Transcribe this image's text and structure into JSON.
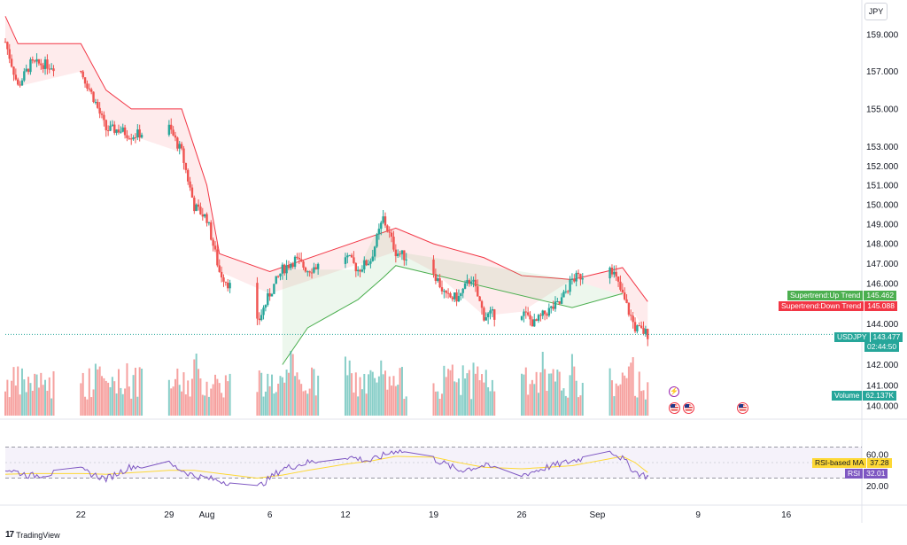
{
  "currency_button": "JPY",
  "branding": {
    "logo": "17",
    "name": "TradingView"
  },
  "price_axis": {
    "ticks": [
      "159.000",
      "157.000",
      "155.000",
      "153.000",
      "152.000",
      "151.000",
      "150.000",
      "149.000",
      "148.000",
      "147.000",
      "146.000",
      "144.000",
      "142.000",
      "141.000",
      "140.000"
    ]
  },
  "rsi_axis": {
    "ticks": [
      "60.00",
      "20.00"
    ]
  },
  "time_axis": {
    "ticks": [
      "22",
      "29",
      "Aug",
      "6",
      "12",
      "19",
      "26",
      "Sep",
      "9",
      "16"
    ]
  },
  "tags": {
    "st_up_label": "Supertrend:Up Trend",
    "st_up_value": "145.462",
    "st_down_label": "Supertrend:Down Trend",
    "st_down_value": "145.088",
    "symbol_label": "USDJPY",
    "symbol_price": "143.477",
    "countdown": "02:44:50",
    "volume_label": "Volume",
    "volume_value": "62.137K",
    "rsi_ma_label": "RSI-based MA",
    "rsi_ma_value": "37.28",
    "rsi_label": "RSI",
    "rsi_value": "32.01"
  },
  "colors": {
    "up": "#26a69a",
    "down": "#ef5350",
    "st_up": "#4caf50",
    "st_down": "#f23645",
    "rsi": "#7e57c2",
    "rsi_ma": "#fdd835",
    "price_line": "#26a69a"
  },
  "chart_data": {
    "type": "line",
    "symbol": "USDJPY",
    "currency": "JPY",
    "y_scale": "log",
    "ylim": [
      139.5,
      160.5
    ],
    "xlim": [
      "2024-07-16",
      "2024-09-22"
    ],
    "x_ticks": [
      "22",
      "29",
      "Aug",
      "6",
      "12",
      "19",
      "26",
      "Sep",
      "9",
      "16"
    ],
    "close_daily": [
      {
        "date": "2024-07-16",
        "close": 158.6
      },
      {
        "date": "2024-07-17",
        "close": 156.2
      },
      {
        "date": "2024-07-18",
        "close": 157.4
      },
      {
        "date": "2024-07-19",
        "close": 157.4
      },
      {
        "date": "2024-07-22",
        "close": 157.0
      },
      {
        "date": "2024-07-23",
        "close": 155.6
      },
      {
        "date": "2024-07-24",
        "close": 153.9
      },
      {
        "date": "2024-07-25",
        "close": 153.9
      },
      {
        "date": "2024-07-26",
        "close": 153.6
      },
      {
        "date": "2024-07-29",
        "close": 154.0
      },
      {
        "date": "2024-07-30",
        "close": 152.7
      },
      {
        "date": "2024-07-31",
        "close": 149.9
      },
      {
        "date": "2024-08-01",
        "close": 149.3
      },
      {
        "date": "2024-08-02",
        "close": 146.6
      },
      {
        "date": "2024-08-05",
        "close": 144.0
      },
      {
        "date": "2024-08-06",
        "close": 145.5
      },
      {
        "date": "2024-08-07",
        "close": 146.7
      },
      {
        "date": "2024-08-08",
        "close": 147.2
      },
      {
        "date": "2024-08-09",
        "close": 146.7
      },
      {
        "date": "2024-08-12",
        "close": 147.4
      },
      {
        "date": "2024-08-13",
        "close": 146.7
      },
      {
        "date": "2024-08-14",
        "close": 147.2
      },
      {
        "date": "2024-08-15",
        "close": 149.3
      },
      {
        "date": "2024-08-16",
        "close": 147.6
      },
      {
        "date": "2024-08-19",
        "close": 146.6
      },
      {
        "date": "2024-08-20",
        "close": 145.3
      },
      {
        "date": "2024-08-21",
        "close": 145.3
      },
      {
        "date": "2024-08-22",
        "close": 146.3
      },
      {
        "date": "2024-08-23",
        "close": 144.4
      },
      {
        "date": "2024-08-26",
        "close": 144.6
      },
      {
        "date": "2024-08-27",
        "close": 144.0
      },
      {
        "date": "2024-08-28",
        "close": 144.6
      },
      {
        "date": "2024-08-29",
        "close": 145.0
      },
      {
        "date": "2024-08-30",
        "close": 146.2
      },
      {
        "date": "2024-09-02",
        "close": 147.0
      },
      {
        "date": "2024-09-03",
        "close": 145.4
      },
      {
        "date": "2024-09-04",
        "close": 143.8
      },
      {
        "date": "2024-09-05",
        "close": 143.5
      }
    ],
    "supertrend_down": [
      {
        "date": "2024-07-16",
        "value": 160.0
      },
      {
        "date": "2024-07-17",
        "value": 158.5
      },
      {
        "date": "2024-07-22",
        "value": 158.5
      },
      {
        "date": "2024-07-24",
        "value": 156.0
      },
      {
        "date": "2024-07-26",
        "value": 155.0
      },
      {
        "date": "2024-07-30",
        "value": 155.0
      },
      {
        "date": "2024-07-31",
        "value": 153.0
      },
      {
        "date": "2024-08-01",
        "value": 151.0
      },
      {
        "date": "2024-08-02",
        "value": 147.5
      },
      {
        "date": "2024-08-06",
        "value": 146.6
      },
      {
        "date": "2024-08-16",
        "value": 148.8
      },
      {
        "date": "2024-08-19",
        "value": 148.0
      },
      {
        "date": "2024-08-23",
        "value": 147.3
      },
      {
        "date": "2024-08-26",
        "value": 146.4
      },
      {
        "date": "2024-08-30",
        "value": 146.2
      },
      {
        "date": "2024-09-03",
        "value": 146.8
      },
      {
        "date": "2024-09-05",
        "value": 145.1
      }
    ],
    "supertrend_up": [
      {
        "date": "2024-08-07",
        "value": 142.0
      },
      {
        "date": "2024-08-09",
        "value": 143.8
      },
      {
        "date": "2024-08-13",
        "value": 145.2
      },
      {
        "date": "2024-08-15",
        "value": 146.3
      },
      {
        "date": "2024-08-16",
        "value": 146.9
      },
      {
        "date": "2024-08-30",
        "value": 144.8
      },
      {
        "date": "2024-09-03",
        "value": 145.5
      }
    ],
    "volume": {
      "last": "62.137K"
    },
    "rsi": {
      "length_label": "RSI",
      "ylim": [
        0,
        100
      ],
      "bands": [
        30,
        70
      ],
      "last": 32.01,
      "ma_last": 37.28,
      "daily": [
        {
          "date": "2024-07-16",
          "rsi": 42,
          "ma": 35
        },
        {
          "date": "2024-07-18",
          "rsi": 33,
          "ma": 36
        },
        {
          "date": "2024-07-22",
          "rsi": 40,
          "ma": 36
        },
        {
          "date": "2024-07-24",
          "rsi": 29,
          "ma": 35
        },
        {
          "date": "2024-07-26",
          "rsi": 45,
          "ma": 37
        },
        {
          "date": "2024-07-29",
          "rsi": 48,
          "ma": 40
        },
        {
          "date": "2024-07-31",
          "rsi": 33,
          "ma": 40
        },
        {
          "date": "2024-08-02",
          "rsi": 27,
          "ma": 36
        },
        {
          "date": "2024-08-05",
          "rsi": 18,
          "ma": 30
        },
        {
          "date": "2024-08-07",
          "rsi": 42,
          "ma": 34
        },
        {
          "date": "2024-08-09",
          "rsi": 50,
          "ma": 40
        },
        {
          "date": "2024-08-12",
          "rsi": 58,
          "ma": 48
        },
        {
          "date": "2024-08-14",
          "rsi": 52,
          "ma": 52
        },
        {
          "date": "2024-08-16",
          "rsi": 66,
          "ma": 58
        },
        {
          "date": "2024-08-19",
          "rsi": 55,
          "ma": 57
        },
        {
          "date": "2024-08-21",
          "rsi": 40,
          "ma": 50
        },
        {
          "date": "2024-08-23",
          "rsi": 46,
          "ma": 44
        },
        {
          "date": "2024-08-26",
          "rsi": 34,
          "ma": 42
        },
        {
          "date": "2024-08-28",
          "rsi": 44,
          "ma": 44
        },
        {
          "date": "2024-08-30",
          "rsi": 52,
          "ma": 46
        },
        {
          "date": "2024-09-02",
          "rsi": 66,
          "ma": 55
        },
        {
          "date": "2024-09-03",
          "rsi": 55,
          "ma": 58
        },
        {
          "date": "2024-09-04",
          "rsi": 38,
          "ma": 50
        },
        {
          "date": "2024-09-05",
          "rsi": 32.01,
          "ma": 37.28
        }
      ]
    }
  }
}
